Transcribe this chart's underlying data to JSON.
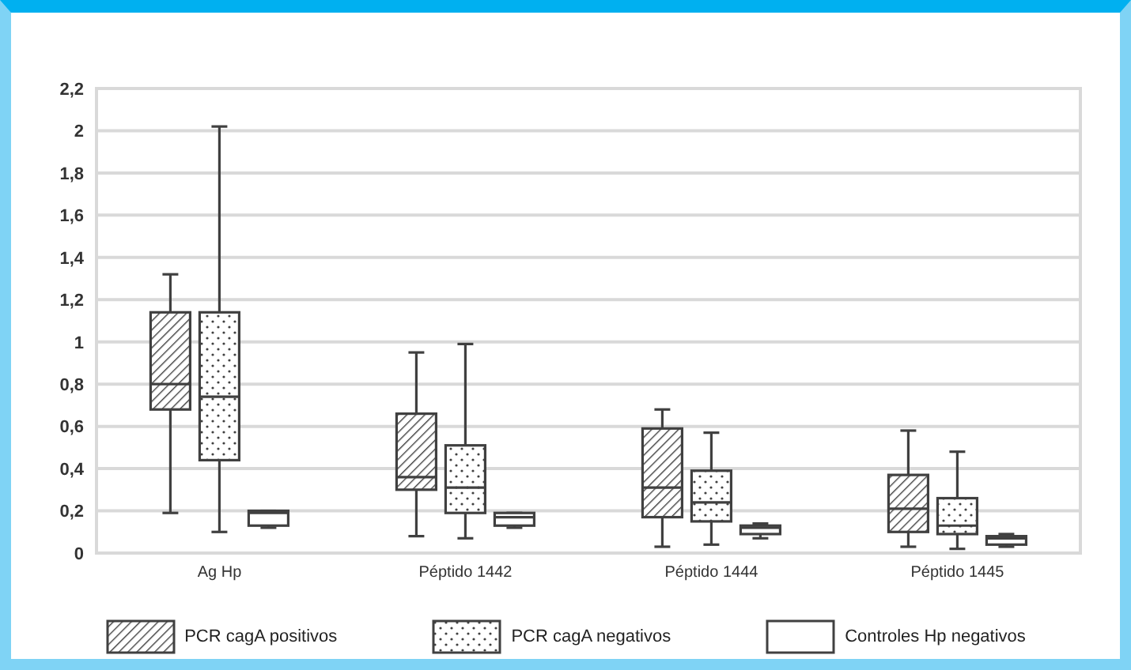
{
  "chart_data": {
    "type": "box",
    "categories": [
      "Ag Hp",
      "Péptido 1442",
      "Péptido 1444",
      "Péptido 1445"
    ],
    "ylim": [
      0,
      2.2
    ],
    "yticks": [
      0,
      {
        "value": 0.2,
        "label": "0,2"
      },
      {
        "value": 0.4,
        "label": "0,4"
      },
      {
        "value": 0.6,
        "label": "0,6"
      },
      {
        "value": 0.8,
        "label": "0,8"
      },
      1,
      {
        "value": 1.2,
        "label": "1,2"
      },
      {
        "value": 1.4,
        "label": "1,4"
      },
      {
        "value": 1.6,
        "label": "1,6"
      },
      {
        "value": 1.8,
        "label": "1,8"
      },
      2,
      {
        "value": 2.2,
        "label": "2,2"
      }
    ],
    "grid": "y",
    "legend": "bottom",
    "series": [
      {
        "name": "PCR cagA positivos",
        "color": "#404040",
        "boxes": [
          {
            "low": 0.19,
            "q1": 0.68,
            "median": 0.8,
            "q3": 1.14,
            "high": 1.32
          },
          {
            "low": 0.08,
            "q1": 0.3,
            "median": 0.36,
            "q3": 0.66,
            "high": 0.95
          },
          {
            "low": 0.03,
            "q1": 0.17,
            "median": 0.31,
            "q3": 0.59,
            "high": 0.68
          },
          {
            "low": 0.03,
            "q1": 0.1,
            "median": 0.21,
            "q3": 0.37,
            "high": 0.58
          }
        ]
      },
      {
        "name": "PCR cagA negativos",
        "color": "#404040",
        "boxes": [
          {
            "low": 0.1,
            "q1": 0.44,
            "median": 0.74,
            "q3": 1.14,
            "high": 2.02
          },
          {
            "low": 0.07,
            "q1": 0.19,
            "median": 0.31,
            "q3": 0.51,
            "high": 0.99
          },
          {
            "low": 0.04,
            "q1": 0.15,
            "median": 0.24,
            "q3": 0.39,
            "high": 0.57
          },
          {
            "low": 0.02,
            "q1": 0.09,
            "median": 0.13,
            "q3": 0.26,
            "high": 0.48
          }
        ]
      },
      {
        "name": "Controles Hp negativos",
        "color": "#404040",
        "boxes": [
          {
            "low": 0.12,
            "q1": 0.13,
            "median": 0.19,
            "q3": 0.2,
            "high": 0.2
          },
          {
            "low": 0.12,
            "q1": 0.13,
            "median": 0.17,
            "q3": 0.19,
            "high": 0.19
          },
          {
            "low": 0.07,
            "q1": 0.09,
            "median": 0.12,
            "q3": 0.13,
            "high": 0.14
          },
          {
            "low": 0.03,
            "q1": 0.04,
            "median": 0.07,
            "q3": 0.08,
            "high": 0.09
          }
        ]
      }
    ]
  }
}
